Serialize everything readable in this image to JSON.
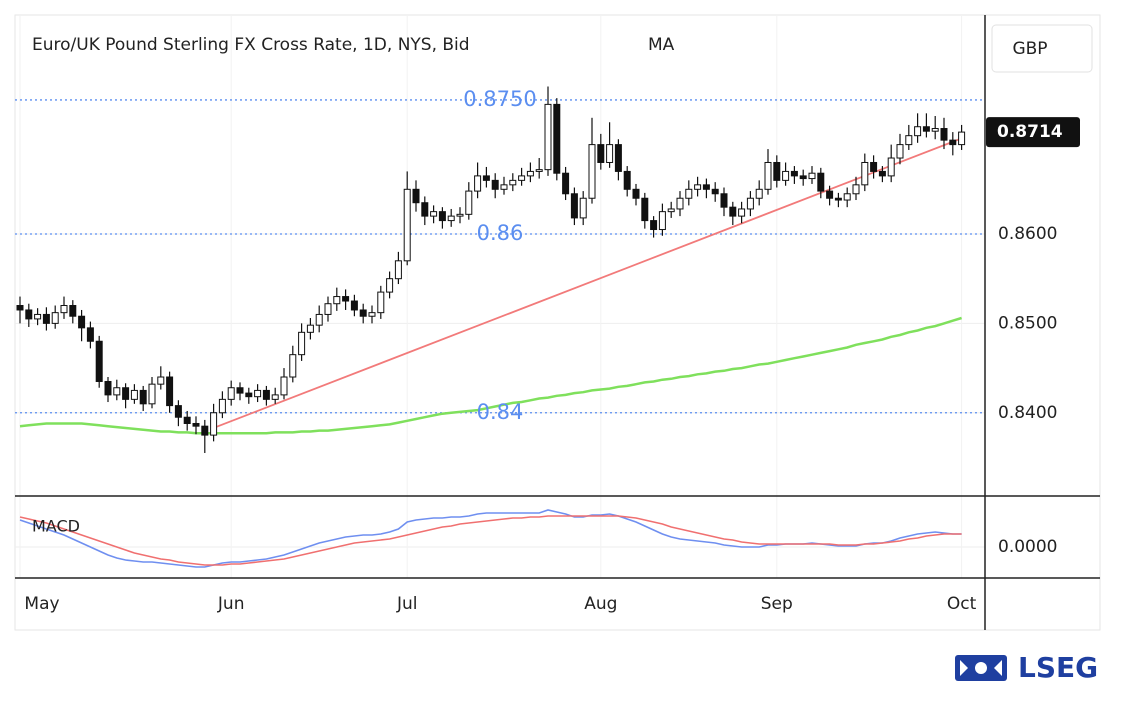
{
  "chart_data": {
    "type": "candlestick",
    "title": "Euro/UK Pound Sterling FX Cross Rate, 1D, NYS, Bid",
    "currency": "GBP",
    "up_color": "#ffffff",
    "down_color": "#111111",
    "categories": [
      "May",
      null,
      null,
      null,
      null,
      null,
      null,
      null,
      null,
      null,
      null,
      null,
      null,
      null,
      null,
      null,
      null,
      null,
      null,
      null,
      null,
      null,
      null,
      null,
      "Jun",
      null,
      null,
      null,
      null,
      null,
      null,
      null,
      null,
      null,
      null,
      null,
      null,
      null,
      null,
      null,
      null,
      null,
      null,
      null,
      "Jul",
      null,
      null,
      null,
      null,
      null,
      null,
      null,
      null,
      null,
      null,
      null,
      null,
      null,
      null,
      null,
      null,
      null,
      null,
      null,
      null,
      null,
      "Aug",
      null,
      null,
      null,
      null,
      null,
      null,
      null,
      null,
      null,
      null,
      null,
      null,
      null,
      null,
      null,
      null,
      null,
      null,
      null,
      "Sep",
      null,
      null,
      null,
      null,
      null,
      null,
      null,
      null,
      null,
      null,
      null,
      null,
      null,
      null,
      null,
      null,
      null,
      null,
      null,
      null,
      "Oct"
    ],
    "open": [
      0.852,
      0.8515,
      0.8505,
      0.851,
      0.85,
      0.8512,
      0.852,
      0.8508,
      0.8495,
      0.848,
      0.8435,
      0.842,
      0.8428,
      0.8415,
      0.8425,
      0.841,
      0.8432,
      0.844,
      0.8408,
      0.8395,
      0.8388,
      0.8385,
      0.8375,
      0.84,
      0.8415,
      0.8428,
      0.8422,
      0.8418,
      0.8425,
      0.8415,
      0.842,
      0.844,
      0.8465,
      0.849,
      0.8498,
      0.851,
      0.8522,
      0.853,
      0.8525,
      0.8515,
      0.8508,
      0.8512,
      0.8535,
      0.855,
      0.857,
      0.865,
      0.8635,
      0.862,
      0.8625,
      0.8615,
      0.862,
      0.8622,
      0.8648,
      0.8665,
      0.866,
      0.865,
      0.8655,
      0.866,
      0.8665,
      0.867,
      0.8672,
      0.8745,
      0.8668,
      0.8645,
      0.8618,
      0.864,
      0.87,
      0.868,
      0.87,
      0.867,
      0.865,
      0.864,
      0.8615,
      0.8605,
      0.8625,
      0.8628,
      0.864,
      0.865,
      0.8655,
      0.865,
      0.8645,
      0.863,
      0.862,
      0.8628,
      0.864,
      0.865,
      0.868,
      0.866,
      0.867,
      0.8665,
      0.8662,
      0.8668,
      0.8648,
      0.864,
      0.8638,
      0.8645,
      0.8655,
      0.868,
      0.867,
      0.8665,
      0.8685,
      0.87,
      0.871,
      0.872,
      0.8715,
      0.8718,
      0.8705,
      0.87
    ],
    "high": [
      0.853,
      0.8522,
      0.8517,
      0.8518,
      0.852,
      0.853,
      0.8526,
      0.8515,
      0.8502,
      0.8486,
      0.844,
      0.8437,
      0.8433,
      0.8432,
      0.843,
      0.844,
      0.8452,
      0.8446,
      0.8414,
      0.8402,
      0.8396,
      0.8392,
      0.841,
      0.8424,
      0.8436,
      0.8434,
      0.8428,
      0.8432,
      0.843,
      0.8428,
      0.845,
      0.8475,
      0.85,
      0.8506,
      0.852,
      0.853,
      0.854,
      0.8538,
      0.8532,
      0.8522,
      0.852,
      0.8542,
      0.8558,
      0.858,
      0.867,
      0.866,
      0.8642,
      0.8632,
      0.863,
      0.8628,
      0.863,
      0.8658,
      0.868,
      0.8675,
      0.8668,
      0.8664,
      0.8668,
      0.8674,
      0.868,
      0.8685,
      0.8765,
      0.8752,
      0.8675,
      0.8652,
      0.8648,
      0.873,
      0.8712,
      0.8725,
      0.8706,
      0.8676,
      0.8656,
      0.8646,
      0.862,
      0.8634,
      0.8636,
      0.8648,
      0.866,
      0.8664,
      0.8662,
      0.8658,
      0.8652,
      0.8636,
      0.8636,
      0.8648,
      0.866,
      0.8695,
      0.8688,
      0.868,
      0.8676,
      0.8672,
      0.8676,
      0.8674,
      0.8654,
      0.8646,
      0.8652,
      0.8664,
      0.869,
      0.8688,
      0.8676,
      0.87,
      0.8712,
      0.8722,
      0.8735,
      0.8735,
      0.8732,
      0.873,
      0.8714,
      0.8722
    ],
    "low": [
      0.85,
      0.8496,
      0.8498,
      0.8492,
      0.8494,
      0.8505,
      0.85,
      0.848,
      0.8472,
      0.8428,
      0.8412,
      0.8414,
      0.8405,
      0.841,
      0.8402,
      0.8405,
      0.8426,
      0.84,
      0.8385,
      0.838,
      0.8376,
      0.8355,
      0.8368,
      0.8394,
      0.8408,
      0.8414,
      0.841,
      0.8412,
      0.8408,
      0.841,
      0.8415,
      0.8434,
      0.8458,
      0.8482,
      0.849,
      0.8502,
      0.8514,
      0.8515,
      0.8508,
      0.85,
      0.85,
      0.8505,
      0.8528,
      0.8544,
      0.8565,
      0.8625,
      0.861,
      0.8612,
      0.8606,
      0.8608,
      0.8612,
      0.8616,
      0.864,
      0.8652,
      0.864,
      0.8644,
      0.8648,
      0.8654,
      0.8658,
      0.8662,
      0.8665,
      0.866,
      0.8638,
      0.861,
      0.861,
      0.8634,
      0.8672,
      0.8674,
      0.866,
      0.8642,
      0.8632,
      0.8606,
      0.8596,
      0.8598,
      0.8618,
      0.862,
      0.8632,
      0.8642,
      0.864,
      0.8636,
      0.862,
      0.861,
      0.8612,
      0.862,
      0.8632,
      0.8644,
      0.8652,
      0.8654,
      0.8656,
      0.8654,
      0.8656,
      0.864,
      0.8632,
      0.863,
      0.863,
      0.8638,
      0.8648,
      0.8662,
      0.8658,
      0.8658,
      0.8678,
      0.8694,
      0.8702,
      0.8708,
      0.8706,
      0.8695,
      0.8688,
      0.8694
    ],
    "close": [
      0.8515,
      0.8505,
      0.851,
      0.85,
      0.8512,
      0.852,
      0.8508,
      0.8495,
      0.848,
      0.8435,
      0.842,
      0.8428,
      0.8415,
      0.8425,
      0.841,
      0.8432,
      0.844,
      0.8408,
      0.8395,
      0.8388,
      0.8385,
      0.8375,
      0.84,
      0.8415,
      0.8428,
      0.8422,
      0.8418,
      0.8425,
      0.8415,
      0.842,
      0.844,
      0.8465,
      0.849,
      0.8498,
      0.851,
      0.8522,
      0.853,
      0.8525,
      0.8515,
      0.8508,
      0.8512,
      0.8535,
      0.855,
      0.857,
      0.865,
      0.8635,
      0.862,
      0.8625,
      0.8615,
      0.862,
      0.8622,
      0.8648,
      0.8665,
      0.866,
      0.865,
      0.8655,
      0.866,
      0.8665,
      0.867,
      0.8672,
      0.8745,
      0.8668,
      0.8645,
      0.8618,
      0.864,
      0.87,
      0.868,
      0.87,
      0.867,
      0.865,
      0.864,
      0.8615,
      0.8605,
      0.8625,
      0.8628,
      0.864,
      0.865,
      0.8655,
      0.865,
      0.8645,
      0.863,
      0.862,
      0.8628,
      0.864,
      0.865,
      0.868,
      0.866,
      0.867,
      0.8665,
      0.8662,
      0.8668,
      0.8648,
      0.864,
      0.8638,
      0.8645,
      0.8655,
      0.868,
      0.867,
      0.8665,
      0.8685,
      0.87,
      0.871,
      0.872,
      0.8715,
      0.8718,
      0.8705,
      0.87,
      0.8714
    ],
    "series": [
      {
        "name": "MA",
        "color": "#7fe05c",
        "values": [
          0.8385,
          0.8386,
          0.8387,
          0.8388,
          0.8388,
          0.8388,
          0.8388,
          0.8388,
          0.8387,
          0.8386,
          0.8385,
          0.8384,
          0.8383,
          0.8382,
          0.8381,
          0.838,
          0.8379,
          0.8379,
          0.8378,
          0.8378,
          0.8377,
          0.8377,
          0.8377,
          0.8377,
          0.8377,
          0.8377,
          0.8377,
          0.8377,
          0.8377,
          0.8378,
          0.8378,
          0.8378,
          0.8379,
          0.8379,
          0.838,
          0.838,
          0.8381,
          0.8382,
          0.8383,
          0.8384,
          0.8385,
          0.8386,
          0.8387,
          0.8389,
          0.8391,
          0.8393,
          0.8395,
          0.8397,
          0.8399,
          0.84,
          0.8401,
          0.8402,
          0.8403,
          0.8405,
          0.8407,
          0.8409,
          0.8411,
          0.8412,
          0.8414,
          0.8416,
          0.8417,
          0.8419,
          0.842,
          0.8422,
          0.8423,
          0.8425,
          0.8426,
          0.8427,
          0.8429,
          0.843,
          0.8432,
          0.8434,
          0.8435,
          0.8437,
          0.8438,
          0.844,
          0.8441,
          0.8443,
          0.8444,
          0.8446,
          0.8447,
          0.8449,
          0.845,
          0.8452,
          0.8454,
          0.8455,
          0.8457,
          0.8459,
          0.8461,
          0.8463,
          0.8465,
          0.8467,
          0.8469,
          0.8471,
          0.8473,
          0.8476,
          0.8478,
          0.848,
          0.8482,
          0.8485,
          0.8487,
          0.849,
          0.8492,
          0.8495,
          0.8497,
          0.85,
          0.8503,
          0.8506
        ]
      }
    ],
    "ylim": [
      0.8308,
      0.8845
    ],
    "yticks": [
      {
        "value": 0.84,
        "label": "0.8400"
      },
      {
        "value": 0.85,
        "label": "0.8500"
      },
      {
        "value": 0.86,
        "label": "0.8600"
      }
    ],
    "grid": true,
    "levels": [
      {
        "value": 0.875,
        "label": "0.8750"
      },
      {
        "value": 0.86,
        "label": "0.86"
      },
      {
        "value": 0.84,
        "label": "0.84"
      }
    ],
    "level_color": "#5b8ef0",
    "trendline": {
      "color": "#f27a7a",
      "start_index": 22,
      "start": 0.8383,
      "end_index": 107,
      "end": 0.8707
    },
    "macd": {
      "label": "MACD",
      "ylim": [
        -0.0031,
        0.005
      ],
      "yticks": [
        {
          "value": 0,
          "label": "0.0000"
        }
      ],
      "series": [
        {
          "color": "#6f8ff0",
          "values": [
            0.0027,
            0.0024,
            0.0021,
            0.0018,
            0.0015,
            0.0012,
            0.0008,
            0.0004,
            0.0,
            -0.0004,
            -0.0008,
            -0.0011,
            -0.0013,
            -0.0014,
            -0.0015,
            -0.0015,
            -0.0016,
            -0.0017,
            -0.0018,
            -0.0019,
            -0.002,
            -0.002,
            -0.0018,
            -0.0016,
            -0.0015,
            -0.0015,
            -0.0014,
            -0.0013,
            -0.0012,
            -0.001,
            -0.0008,
            -0.0005,
            -0.0002,
            0.0001,
            0.0004,
            0.0006,
            0.0008,
            0.001,
            0.0011,
            0.0012,
            0.0012,
            0.0013,
            0.0015,
            0.0018,
            0.0025,
            0.0027,
            0.0028,
            0.0029,
            0.0029,
            0.003,
            0.003,
            0.0031,
            0.0033,
            0.0034,
            0.0034,
            0.0034,
            0.0034,
            0.0034,
            0.0034,
            0.0034,
            0.0037,
            0.0035,
            0.0033,
            0.003,
            0.003,
            0.0032,
            0.0032,
            0.0033,
            0.0031,
            0.0028,
            0.0025,
            0.0021,
            0.0017,
            0.0013,
            0.001,
            0.0008,
            0.0007,
            0.0006,
            0.0005,
            0.0004,
            0.0002,
            0.0001,
            0.0,
            0.0,
            0.0,
            0.0002,
            0.0002,
            0.0003,
            0.0003,
            0.0003,
            0.0004,
            0.0003,
            0.0002,
            0.0001,
            0.0001,
            0.0001,
            0.0003,
            0.0004,
            0.0004,
            0.0006,
            0.0009,
            0.0011,
            0.0013,
            0.0014,
            0.0015,
            0.0014,
            0.0013,
            0.0013
          ]
        },
        {
          "color": "#f07070",
          "values": [
            0.003,
            0.0028,
            0.0026,
            0.0024,
            0.0021,
            0.0018,
            0.0015,
            0.0012,
            0.0009,
            0.0006,
            0.0003,
            0.0,
            -0.0003,
            -0.0006,
            -0.0008,
            -0.001,
            -0.0012,
            -0.0013,
            -0.0015,
            -0.0016,
            -0.0017,
            -0.0018,
            -0.0018,
            -0.0018,
            -0.0017,
            -0.0017,
            -0.0016,
            -0.0015,
            -0.0014,
            -0.0013,
            -0.0012,
            -0.001,
            -0.0008,
            -0.0006,
            -0.0004,
            -0.0002,
            0.0,
            0.0002,
            0.0004,
            0.0005,
            0.0006,
            0.0007,
            0.0008,
            0.001,
            0.0012,
            0.0014,
            0.0016,
            0.0018,
            0.002,
            0.0021,
            0.0023,
            0.0024,
            0.0025,
            0.0026,
            0.0027,
            0.0028,
            0.0029,
            0.0029,
            0.003,
            0.003,
            0.0031,
            0.0031,
            0.0031,
            0.0031,
            0.0031,
            0.0031,
            0.0031,
            0.0031,
            0.0031,
            0.003,
            0.0029,
            0.0027,
            0.0025,
            0.0023,
            0.002,
            0.0018,
            0.0016,
            0.0014,
            0.0012,
            0.001,
            0.0008,
            0.0007,
            0.0005,
            0.0004,
            0.0003,
            0.0003,
            0.0003,
            0.0003,
            0.0003,
            0.0003,
            0.0003,
            0.0003,
            0.0003,
            0.0002,
            0.0002,
            0.0002,
            0.0003,
            0.0003,
            0.0004,
            0.0005,
            0.0006,
            0.0008,
            0.0009,
            0.0011,
            0.0012,
            0.0013,
            0.0013,
            0.0013
          ]
        }
      ]
    },
    "logo": "LSEG"
  }
}
